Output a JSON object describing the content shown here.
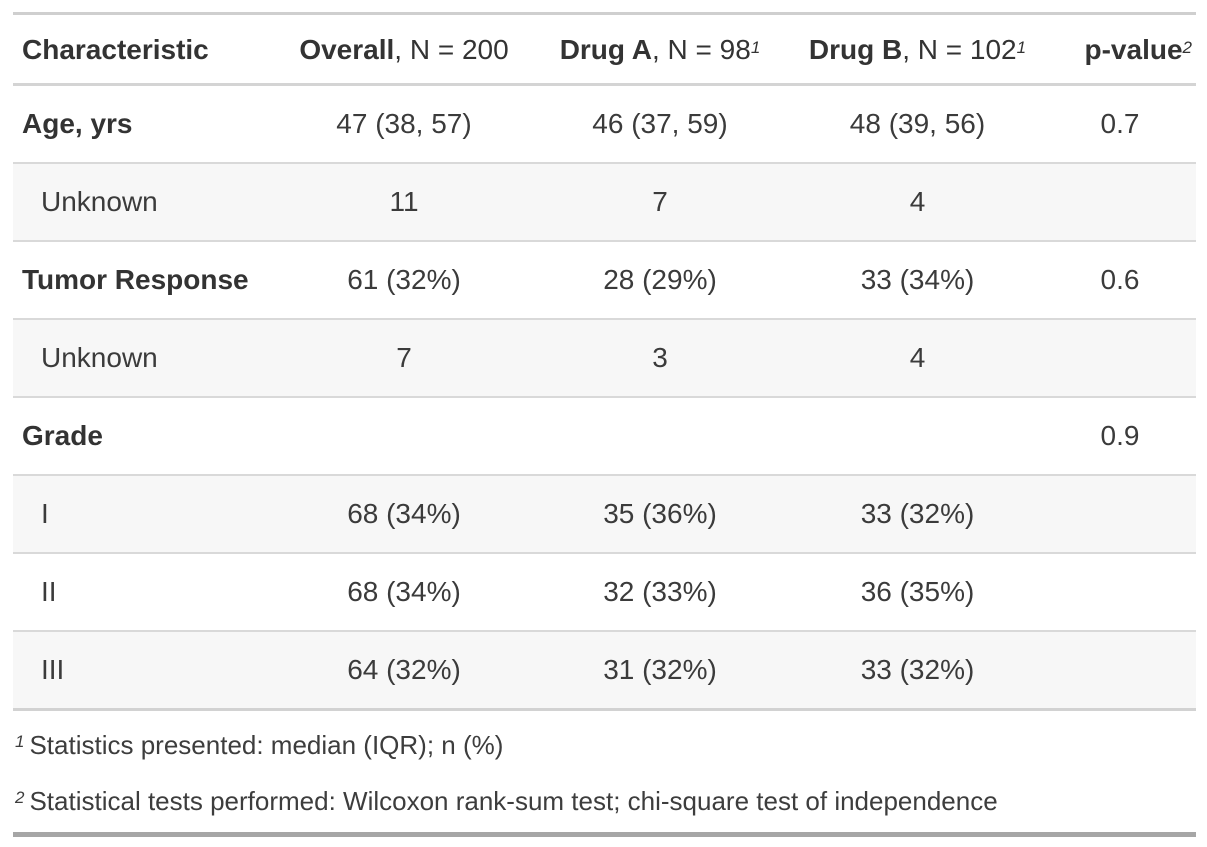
{
  "table": {
    "header": {
      "characteristic": "Characteristic",
      "overall": {
        "bold": "Overall",
        "rest": ", N = 200"
      },
      "drug_a": {
        "bold": "Drug A",
        "rest": ", N = 98",
        "sup": "1"
      },
      "drug_b": {
        "bold": "Drug B",
        "rest": ", N = 102",
        "sup": "1"
      },
      "p_value": {
        "bold": "p-value",
        "sup": "2"
      }
    },
    "rows": [
      {
        "label": "Age, yrs",
        "cells": [
          "47 (38, 57)",
          "46 (37, 59)",
          "48 (39, 56)",
          "0.7"
        ]
      },
      {
        "label": "Unknown",
        "cells": [
          "11",
          "7",
          "4",
          ""
        ]
      },
      {
        "label": "Tumor Response",
        "cells": [
          "61 (32%)",
          "28 (29%)",
          "33 (34%)",
          "0.6"
        ]
      },
      {
        "label": "Unknown",
        "cells": [
          "7",
          "3",
          "4",
          ""
        ]
      },
      {
        "label": "Grade",
        "cells": [
          "",
          "",
          "",
          "0.9"
        ]
      },
      {
        "label": "I",
        "cells": [
          "68 (34%)",
          "35 (36%)",
          "33 (32%)",
          ""
        ]
      },
      {
        "label": "II",
        "cells": [
          "68 (34%)",
          "32 (33%)",
          "36 (35%)",
          ""
        ]
      },
      {
        "label": "III",
        "cells": [
          "64 (32%)",
          "31 (32%)",
          "33 (32%)",
          ""
        ]
      }
    ],
    "footnotes": [
      {
        "marker": "1",
        "text": "Statistics presented: median (IQR); n (%)"
      },
      {
        "marker": "2",
        "text": "Statistical tests performed: Wilcoxon rank-sum test; chi-square test of independence"
      }
    ],
    "colors": {
      "stripe_background": "#f7f7f7",
      "row_divider": "#d9d9d9",
      "top_border": "#cfcfcf",
      "header_divider": "#d4d4d4",
      "bottom_border": "#a6a6a6",
      "text": "#3b3b3b"
    }
  }
}
